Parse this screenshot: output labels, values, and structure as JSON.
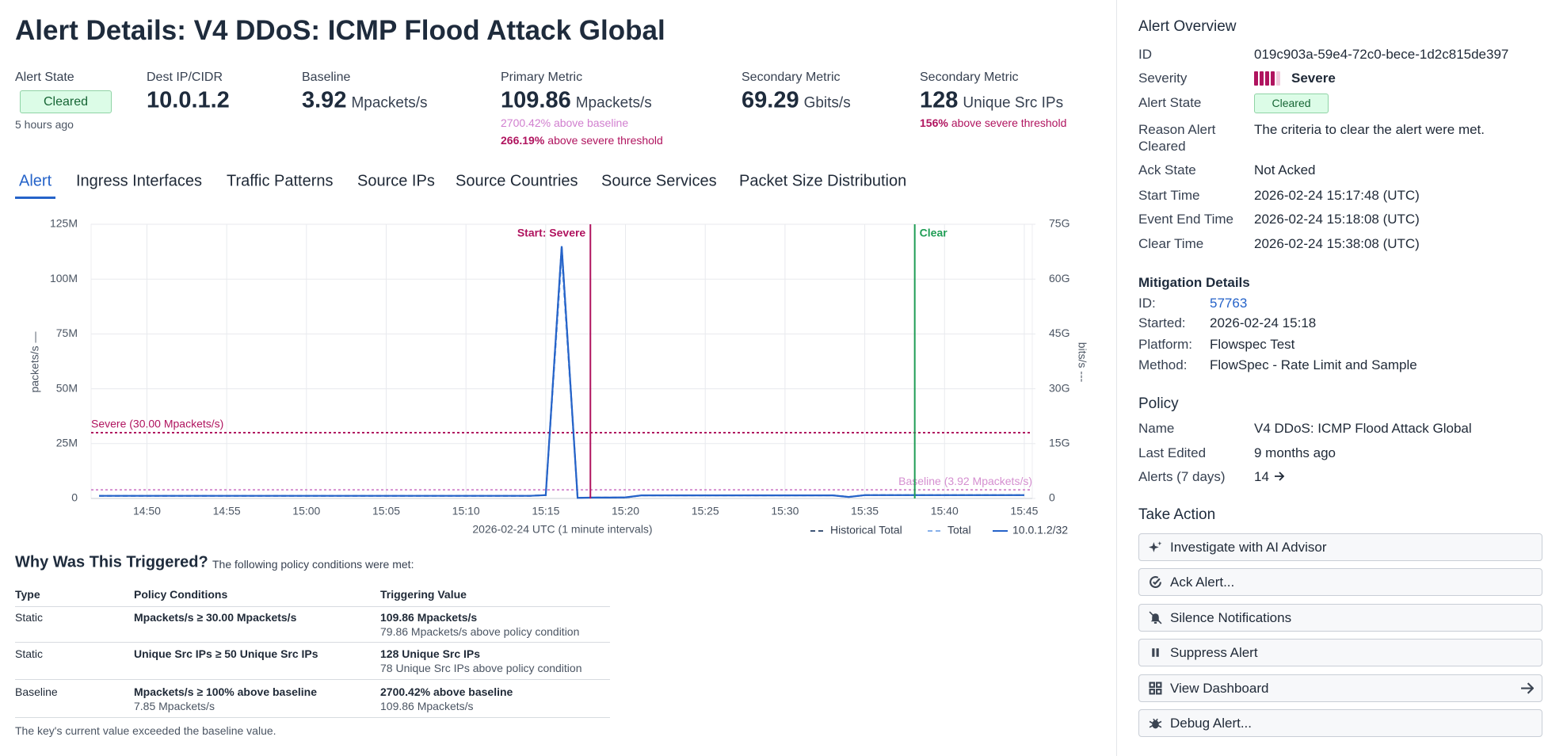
{
  "header": {
    "title": "Alert Details: V4 DDoS: ICMP Flood Attack Global"
  },
  "summary": {
    "alert_state": {
      "label": "Alert State",
      "badge": "Cleared",
      "ago": "5 hours ago"
    },
    "metrics": [
      {
        "label": "Dest IP/CIDR",
        "value": "10.0.1.2"
      },
      {
        "label": "Baseline",
        "value": "3.92",
        "unit": "Mpackets/s"
      },
      {
        "label": "Primary Metric",
        "value": "109.86",
        "unit": "Mpackets/s",
        "notes": [
          {
            "text": "2700.42% above baseline"
          },
          {
            "strong": "266.19%",
            "text": "above severe threshold"
          }
        ]
      },
      {
        "label": "Secondary Metric",
        "value": "69.29",
        "unit": "Gbits/s"
      },
      {
        "label": "Secondary Metric",
        "value": "128",
        "unit": "Unique Src IPs",
        "notes": [
          {
            "strong": "156%",
            "text": "above severe threshold"
          }
        ]
      }
    ]
  },
  "tabs": {
    "items": [
      "Alert",
      "Ingress Interfaces",
      "Traffic Patterns",
      "Source IPs",
      "Source Countries",
      "Source Services",
      "Packet Size Distribution"
    ],
    "active": 0
  },
  "chart_data": {
    "type": "line",
    "xlabel": "2026-02-24 UTC (1 minute intervals)",
    "ylabel": "packets/s —",
    "y2label": "bits/s ---",
    "x": [
      "14:47",
      "14:48",
      "14:49",
      "14:50",
      "14:51",
      "14:52",
      "14:53",
      "14:54",
      "14:55",
      "14:56",
      "14:57",
      "14:58",
      "14:59",
      "15:00",
      "15:01",
      "15:02",
      "15:03",
      "15:04",
      "15:05",
      "15:06",
      "15:07",
      "15:08",
      "15:09",
      "15:10",
      "15:11",
      "15:12",
      "15:13",
      "15:14",
      "15:15",
      "15:16",
      "15:17",
      "15:18",
      "15:19",
      "15:20",
      "15:21",
      "15:22",
      "15:23",
      "15:24",
      "15:25",
      "15:26",
      "15:27",
      "15:28",
      "15:29",
      "15:30",
      "15:31",
      "15:32",
      "15:33",
      "15:34",
      "15:35",
      "15:36",
      "15:37",
      "15:38",
      "15:39",
      "15:40",
      "15:41",
      "15:42",
      "15:43",
      "15:44",
      "15:45"
    ],
    "xlim": [
      "14:46:30",
      "15:45:30"
    ],
    "xticks": [
      "14:50",
      "14:55",
      "15:00",
      "15:05",
      "15:10",
      "15:15",
      "15:20",
      "15:25",
      "15:30",
      "15:35",
      "15:40",
      "15:45"
    ],
    "ylim": [
      0,
      125000000
    ],
    "yticks": [
      {
        "value": 0,
        "label": "0"
      },
      {
        "value": 25000000,
        "label": "25M"
      },
      {
        "value": 50000000,
        "label": "50M"
      },
      {
        "value": 75000000,
        "label": "75M"
      },
      {
        "value": 100000000,
        "label": "100M"
      },
      {
        "value": 125000000,
        "label": "125M"
      }
    ],
    "y2lim": [
      0,
      75000000000
    ],
    "y2ticks": [
      {
        "value": 0,
        "label": "0"
      },
      {
        "value": 15000000000,
        "label": "15G"
      },
      {
        "value": 30000000000,
        "label": "30G"
      },
      {
        "value": 45000000000,
        "label": "45G"
      },
      {
        "value": 60000000000,
        "label": "60G"
      },
      {
        "value": 75000000000,
        "label": "75G"
      }
    ],
    "grid": true,
    "series": [
      {
        "name": "Historical Total",
        "color": "#3f5678",
        "style": "dashed",
        "values": [
          1200000.0,
          1200000.0,
          1200000.0,
          1200000.0,
          1200000.0,
          1200000.0,
          1200000.0,
          1200000.0,
          1200000.0,
          1200000.0,
          1200000.0,
          1200000.0,
          1200000.0,
          1200000.0,
          1200000.0,
          1200000.0,
          1200000.0,
          1200000.0,
          1200000.0,
          1200000.0,
          1200000.0,
          1200000.0,
          1200000.0,
          1200000.0,
          1200000.0,
          1200000.0,
          1200000.0,
          1200000.0,
          1500000.0,
          115000000.0,
          300000.0,
          400000.0,
          400000.0,
          400000.0,
          1400000.0,
          1400000.0,
          1400000.0,
          1400000.0,
          1400000.0,
          1400000.0,
          1400000.0,
          1400000.0,
          1400000.0,
          1400000.0,
          1400000.0,
          1400000.0,
          1400000.0,
          700000.0,
          1500000.0,
          1500000.0,
          1500000.0,
          1500000.0,
          1500000.0,
          1500000.0,
          1500000.0,
          1500000.0,
          1500000.0,
          1500000.0,
          1500000.0
        ]
      },
      {
        "name": "Total",
        "color": "#86b0ea",
        "style": "dashed",
        "values": [
          1200000.0,
          1200000.0,
          1200000.0,
          1200000.0,
          1200000.0,
          1200000.0,
          1200000.0,
          1200000.0,
          1200000.0,
          1200000.0,
          1200000.0,
          1200000.0,
          1200000.0,
          1200000.0,
          1200000.0,
          1200000.0,
          1200000.0,
          1200000.0,
          1200000.0,
          1200000.0,
          1200000.0,
          1200000.0,
          1200000.0,
          1200000.0,
          1200000.0,
          1200000.0,
          1200000.0,
          1200000.0,
          1500000.0,
          110000000.0,
          300000.0,
          400000.0,
          400000.0,
          400000.0,
          1400000.0,
          1400000.0,
          1400000.0,
          1400000.0,
          1400000.0,
          1400000.0,
          1400000.0,
          1400000.0,
          1400000.0,
          1400000.0,
          1400000.0,
          1400000.0,
          1400000.0,
          700000.0,
          1500000.0,
          1500000.0,
          1500000.0,
          1500000.0,
          1500000.0,
          1500000.0,
          1500000.0,
          1500000.0,
          1500000.0,
          1500000.0,
          1500000.0
        ]
      },
      {
        "name": "10.0.1.2/32",
        "color": "#2563c9",
        "style": "solid",
        "values": [
          1200000.0,
          1200000.0,
          1200000.0,
          1200000.0,
          1200000.0,
          1200000.0,
          1200000.0,
          1200000.0,
          1200000.0,
          1200000.0,
          1200000.0,
          1200000.0,
          1200000.0,
          1200000.0,
          1200000.0,
          1200000.0,
          1200000.0,
          1200000.0,
          1200000.0,
          1200000.0,
          1200000.0,
          1200000.0,
          1200000.0,
          1200000.0,
          1200000.0,
          1200000.0,
          1200000.0,
          1200000.0,
          1500000.0,
          115000000.0,
          300000.0,
          400000.0,
          400000.0,
          500000.0,
          1400000.0,
          1400000.0,
          1400000.0,
          1400000.0,
          1400000.0,
          1400000.0,
          1400000.0,
          1400000.0,
          1400000.0,
          1400000.0,
          1400000.0,
          1400000.0,
          1400000.0,
          700000.0,
          1500000.0,
          1500000.0,
          1500000.0,
          1500000.0,
          1500000.0,
          1500000.0,
          1500000.0,
          1500000.0,
          1500000.0,
          1500000.0,
          1500000.0
        ]
      }
    ],
    "hlines": [
      {
        "value": 30000000,
        "label": "Severe (30.00 Mpackets/s)",
        "color": "#b0145f"
      },
      {
        "value": 3920000,
        "label": "Baseline (3.92 Mpackets/s)",
        "color": "#d58fd0"
      }
    ],
    "vlines": [
      {
        "x": "15:17:48",
        "label": "Start: Severe",
        "color": "#b0145f"
      },
      {
        "x": "15:38:08",
        "label": "Clear",
        "color": "#1f9d55"
      }
    ]
  },
  "triggered": {
    "title": "Why Was This Triggered?",
    "subtitle": "The following policy conditions were met:",
    "columns": [
      "Type",
      "Policy Conditions",
      "Triggering Value"
    ],
    "rows": [
      {
        "type": "Static",
        "condition": "Mpackets/s ≥ 30.00 Mpackets/s",
        "value": "109.86 Mpackets/s",
        "value_note": "79.86 Mpackets/s above policy condition"
      },
      {
        "type": "Static",
        "condition": "Unique Src IPs ≥ 50 Unique Src IPs",
        "value": "128 Unique Src IPs",
        "value_note": "78 Unique Src IPs above policy condition"
      },
      {
        "type": "Baseline",
        "condition": "Mpackets/s ≥ 100% above baseline",
        "condition_note": "7.85 Mpackets/s",
        "value": "2700.42% above baseline",
        "value_note": "109.86 Mpackets/s"
      }
    ],
    "footnote": "The key's current value exceeded the baseline value."
  },
  "sidebar": {
    "overview": {
      "title": "Alert Overview",
      "rows": [
        {
          "label": "ID",
          "value": "019c903a-59e4-72c0-bece-1d2c815de397"
        },
        {
          "label": "Severity",
          "value": "Severe"
        },
        {
          "label": "Alert State",
          "value": "Cleared"
        },
        {
          "label": "Reason Alert Cleared",
          "value": "The criteria to clear the alert were met."
        },
        {
          "label": "Ack State",
          "value": "Not Acked"
        },
        {
          "label": "Start Time",
          "value": "2026-02-24 15:17:48 (UTC)"
        },
        {
          "label": "Event End Time",
          "value": "2026-02-24 15:18:08 (UTC)"
        },
        {
          "label": "Clear Time",
          "value": "2026-02-24 15:38:08 (UTC)"
        }
      ]
    },
    "mitigation": {
      "title": "Mitigation Details",
      "rows": [
        {
          "label": "ID:",
          "value": "57763"
        },
        {
          "label": "Started:",
          "value": "2026-02-24 15:18"
        },
        {
          "label": "Platform:",
          "value": "Flowspec Test"
        },
        {
          "label": "Method:",
          "value": "FlowSpec - Rate Limit and Sample"
        }
      ]
    },
    "policy": {
      "title": "Policy",
      "rows": [
        {
          "label": "Name",
          "value": "V4 DDoS: ICMP Flood Attack Global"
        },
        {
          "label": "Last Edited",
          "value": "9 months ago"
        },
        {
          "label": "Alerts (7 days)",
          "value": "14"
        }
      ]
    },
    "actions": {
      "title": "Take Action",
      "buttons": [
        "Investigate with AI Advisor",
        "Ack Alert...",
        "Silence Notifications",
        "Suppress Alert",
        "View Dashboard",
        "Debug Alert..."
      ]
    }
  }
}
